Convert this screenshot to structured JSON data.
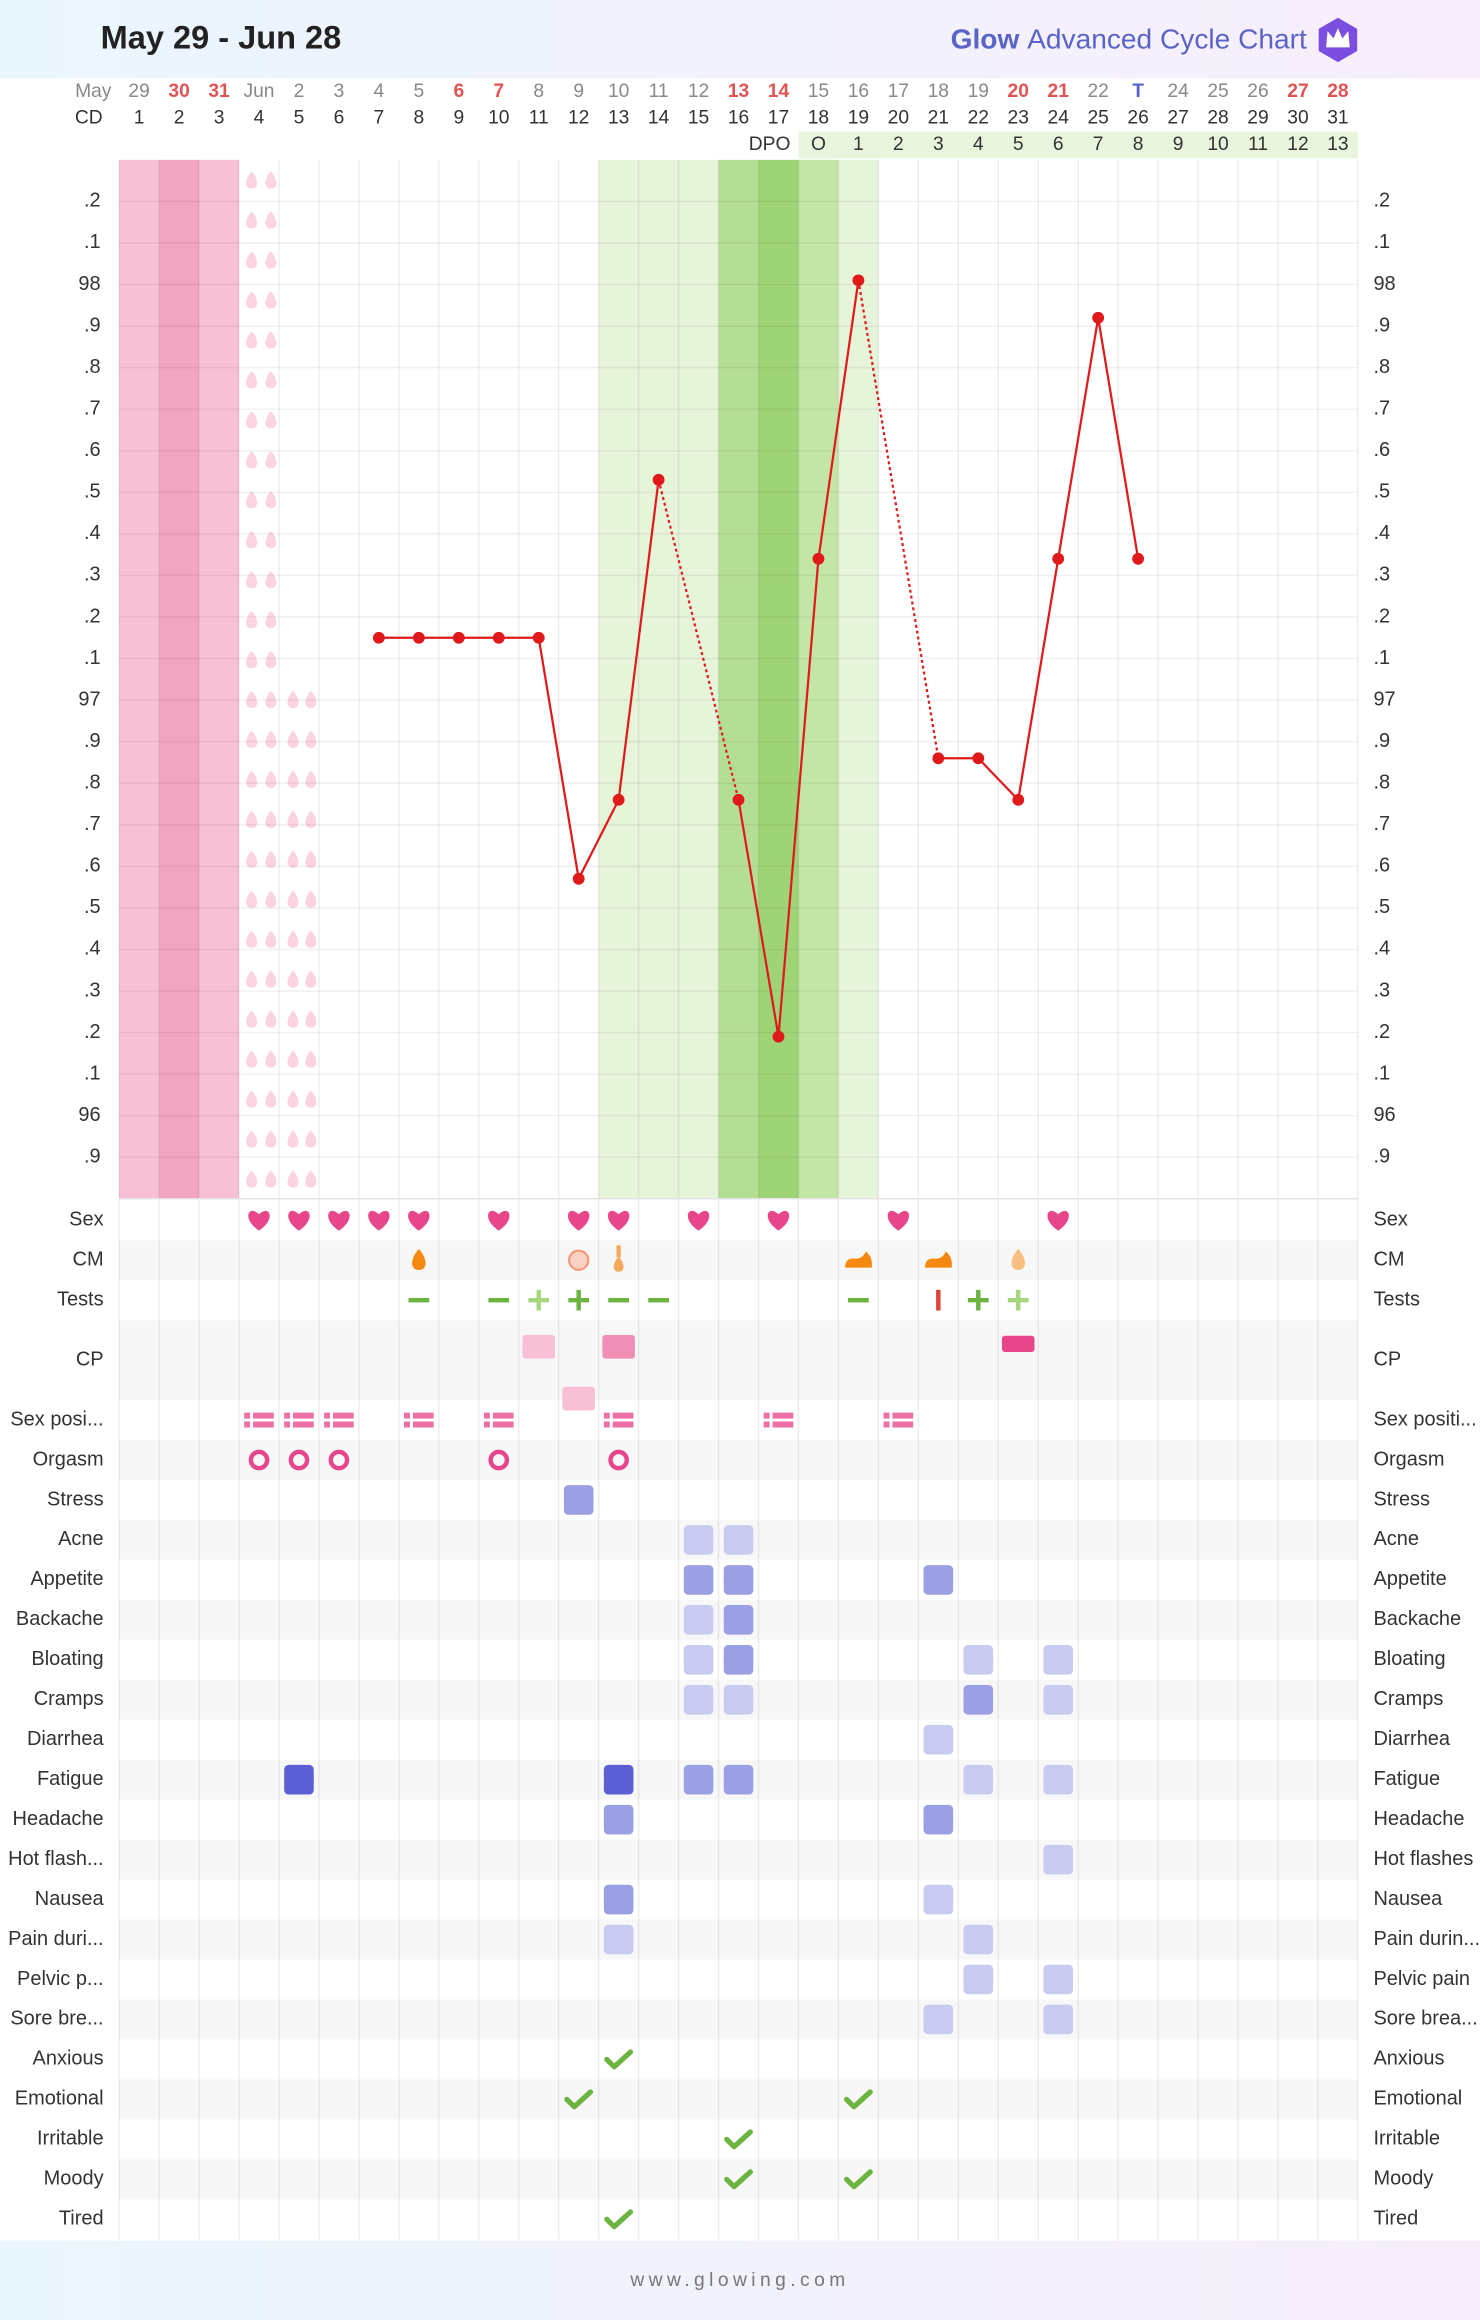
{
  "header": {
    "title": "May 29 - Jun 28",
    "logo": "Glow",
    "brand": "Advanced Cycle Chart"
  },
  "footer": "www.glowing.com",
  "chart_data": {
    "type": "line",
    "month_label": "May",
    "cd_label": "CD",
    "dpo_label": "DPO",
    "categories": [
      "29",
      "30",
      "31",
      "Jun",
      "2",
      "3",
      "4",
      "5",
      "6",
      "7",
      "8",
      "9",
      "10",
      "11",
      "12",
      "13",
      "14",
      "15",
      "16",
      "17",
      "18",
      "19",
      "20",
      "21",
      "22",
      "T",
      "24",
      "25",
      "26",
      "27",
      "28"
    ],
    "category_colors": [
      "#888",
      "#e05353",
      "#e05353",
      "#888",
      "#888",
      "#888",
      "#888",
      "#888",
      "#e05353",
      "#e05353",
      "#888",
      "#888",
      "#888",
      "#888",
      "#888",
      "#e05353",
      "#e05353",
      "#888",
      "#888",
      "#888",
      "#888",
      "#888",
      "#e05353",
      "#e05353",
      "#888",
      "#5a64c8",
      "#888",
      "#888",
      "#888",
      "#e05353",
      "#e05353"
    ],
    "cycle_days": [
      1,
      2,
      3,
      4,
      5,
      6,
      7,
      8,
      9,
      10,
      11,
      12,
      13,
      14,
      15,
      16,
      17,
      18,
      19,
      20,
      21,
      22,
      23,
      24,
      25,
      26,
      27,
      28,
      29,
      30,
      31
    ],
    "dpo": [
      null,
      null,
      null,
      null,
      null,
      null,
      null,
      null,
      null,
      null,
      null,
      null,
      null,
      null,
      null,
      null,
      null,
      "O",
      1,
      2,
      3,
      4,
      5,
      6,
      7,
      8,
      9,
      10,
      11,
      12,
      13
    ],
    "series": [
      {
        "color": "#e0191b",
        "values": [
          null,
          null,
          null,
          null,
          null,
          null,
          97.15,
          97.15,
          97.15,
          97.15,
          97.15,
          96.57,
          96.76,
          97.53,
          null,
          96.76,
          96.19,
          97.34,
          98.01,
          null,
          96.86,
          96.86,
          96.76,
          97.34,
          97.92,
          97.34,
          null,
          null,
          null,
          null,
          null
        ]
      }
    ],
    "ylim": [
      95.8,
      98.3
    ],
    "yticks": [
      {
        "value": 98.2,
        "label": ".2"
      },
      {
        "value": 98.1,
        "label": ".1"
      },
      98,
      {
        "value": 97.9,
        "label": ".9"
      },
      {
        "value": 97.8,
        "label": ".8"
      },
      {
        "value": 97.7,
        "label": ".7"
      },
      {
        "value": 97.6,
        "label": ".6"
      },
      {
        "value": 97.5,
        "label": ".5"
      },
      {
        "value": 97.4,
        "label": ".4"
      },
      {
        "value": 97.3,
        "label": ".3"
      },
      {
        "value": 97.2,
        "label": ".2"
      },
      {
        "value": 97.1,
        "label": ".1"
      },
      97,
      {
        "value": 96.9,
        "label": ".9"
      },
      {
        "value": 96.8,
        "label": ".8"
      },
      {
        "value": 96.7,
        "label": ".7"
      },
      {
        "value": 96.6,
        "label": ".6"
      },
      {
        "value": 96.5,
        "label": ".5"
      },
      {
        "value": 96.4,
        "label": ".4"
      },
      {
        "value": 96.3,
        "label": ".3"
      },
      {
        "value": 96.2,
        "label": ".2"
      },
      {
        "value": 96.1,
        "label": ".1"
      },
      96,
      {
        "value": 95.9,
        "label": ".9"
      }
    ],
    "grid": true
  },
  "trackers": {
    "level_colors": [
      "#c8cbef",
      "#9b9fe3",
      "#5b5fd3"
    ],
    "sex": {
      "label": "Sex",
      "days": [
        4,
        5,
        6,
        7,
        8,
        10,
        12,
        13,
        15,
        17,
        20,
        24
      ]
    },
    "cm": {
      "label": "CM",
      "days": [
        8,
        12,
        13,
        19,
        21,
        23
      ]
    },
    "tests": {
      "label": "Tests",
      "days": [
        8,
        10,
        11,
        12,
        13,
        14,
        19,
        21,
        22,
        23
      ]
    },
    "cp": {
      "label": "CP",
      "days": [
        11,
        12,
        13,
        23
      ]
    },
    "sex_positions": {
      "label": "Sex posi...",
      "label_right": "Sex positi...",
      "days": [
        4,
        5,
        6,
        8,
        10,
        13,
        17,
        20
      ]
    },
    "orgasm": {
      "label": "Orgasm",
      "days": [
        4,
        5,
        6,
        10,
        13
      ]
    },
    "symptoms": [
      {
        "label": "Stress",
        "days": [
          12
        ],
        "levels": [
          2
        ]
      },
      {
        "label": "Acne",
        "days": [
          15,
          16
        ],
        "levels": [
          1,
          1
        ]
      },
      {
        "label": "Appetite",
        "days": [
          15,
          16,
          21
        ],
        "levels": [
          2,
          2,
          2
        ]
      },
      {
        "label": "Backache",
        "days": [
          15,
          16
        ],
        "levels": [
          1,
          2
        ]
      },
      {
        "label": "Bloating",
        "days": [
          15,
          16,
          22,
          24
        ],
        "levels": [
          1,
          2,
          1,
          1
        ]
      },
      {
        "label": "Cramps",
        "days": [
          15,
          16,
          22,
          24
        ],
        "levels": [
          1,
          1,
          2,
          1
        ]
      },
      {
        "label": "Diarrhea",
        "days": [
          21
        ],
        "levels": [
          1
        ]
      },
      {
        "label": "Fatigue",
        "days": [
          5,
          13,
          15,
          16,
          22,
          24
        ],
        "levels": [
          3,
          3,
          2,
          2,
          1,
          1
        ]
      },
      {
        "label": "Headache",
        "days": [
          13,
          21
        ],
        "levels": [
          2,
          2
        ]
      },
      {
        "label": "Hot flash...",
        "label_right": "Hot flashes",
        "days": [
          24
        ],
        "levels": [
          1
        ]
      },
      {
        "label": "Nausea",
        "days": [
          13,
          21
        ],
        "levels": [
          2,
          1
        ]
      },
      {
        "label": "Pain duri...",
        "label_right": "Pain durin...",
        "days": [
          13,
          22
        ],
        "levels": [
          1,
          1
        ]
      },
      {
        "label": "Pelvic p...",
        "label_right": "Pelvic pain",
        "days": [
          22,
          24
        ],
        "levels": [
          1,
          1
        ]
      },
      {
        "label": "Sore bre...",
        "label_right": "Sore brea...",
        "days": [
          21,
          24
        ],
        "levels": [
          1,
          1
        ]
      }
    ],
    "moods": [
      {
        "label": "Anxious",
        "days": [
          13
        ]
      },
      {
        "label": "Emotional",
        "days": [
          12,
          19
        ]
      },
      {
        "label": "Irritable",
        "days": [
          16
        ]
      },
      {
        "label": "Moody",
        "days": [
          16,
          19
        ]
      },
      {
        "label": "Tired",
        "days": [
          13
        ]
      }
    ]
  }
}
